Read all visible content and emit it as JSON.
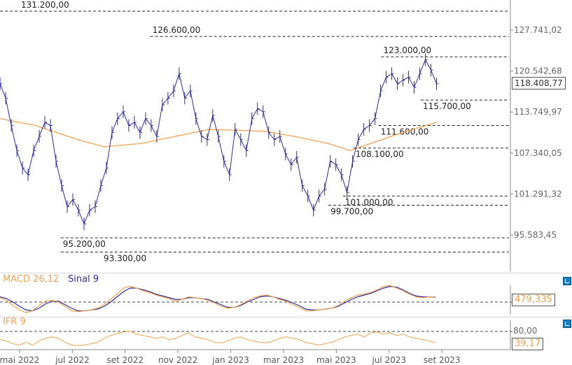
{
  "chart_data": {
    "type": "line",
    "price_scale": "log",
    "y_ticks": [
      "127.741,02",
      "120.542,68",
      "113.749,97",
      "107.340,05",
      "101.291,32",
      "95.583,45"
    ],
    "y_tick_values": [
      127741.02,
      120542.68,
      113749.97,
      107340.05,
      101291.32,
      95583.45
    ],
    "x_ticks": [
      "mai 2022",
      "jul 2022",
      "set 2022",
      "nov 2022",
      "jan 2023",
      "mar 2023",
      "mai 2023",
      "jul 2023",
      "set 2023"
    ],
    "x_tick_months": [
      0,
      2,
      4,
      6,
      8,
      10,
      12,
      14,
      16
    ],
    "series_start_month": -0.74,
    "series_step_month": 0.212,
    "price": [
      118400,
      116000,
      111600,
      107700,
      105100,
      104100,
      107700,
      109900,
      112100,
      111600,
      106100,
      102500,
      99500,
      100500,
      99000,
      97100,
      99000,
      99500,
      102500,
      105100,
      110500,
      112700,
      113800,
      111600,
      112100,
      110500,
      112700,
      111600,
      109900,
      114900,
      116000,
      117200,
      120100,
      116000,
      117200,
      112700,
      109900,
      109400,
      113200,
      109900,
      106100,
      104100,
      111000,
      109400,
      107700,
      112700,
      114300,
      113800,
      110500,
      109400,
      109900,
      107200,
      105600,
      106700,
      102500,
      101000,
      99000,
      101000,
      102000,
      106100,
      105600,
      104100,
      101500,
      106100,
      109400,
      111000,
      111600,
      112700,
      117200,
      119500,
      120100,
      118400,
      119000,
      119500,
      117800,
      120100,
      122500,
      120700,
      118400
    ],
    "last_price": "118.408,77",
    "ma": [
      {
        "m": -0.74,
        "v": 112700
      },
      {
        "m": 0.6,
        "v": 111600
      },
      {
        "m": 2.2,
        "v": 109400
      },
      {
        "m": 3.2,
        "v": 108300
      },
      {
        "m": 4.6,
        "v": 108800
      },
      {
        "m": 5.9,
        "v": 109900
      },
      {
        "m": 7.2,
        "v": 111000
      },
      {
        "m": 9.3,
        "v": 110700
      },
      {
        "m": 10.4,
        "v": 109900
      },
      {
        "m": 11.7,
        "v": 108800
      },
      {
        "m": 12.5,
        "v": 107700
      },
      {
        "m": 13.3,
        "v": 108800
      },
      {
        "m": 14.5,
        "v": 110500
      },
      {
        "m": 15.8,
        "v": 112100
      }
    ],
    "levels": [
      {
        "value": 131200,
        "label": "131.200,00",
        "from_month": -0.74,
        "label_pos": "above"
      },
      {
        "value": 126600,
        "label": "126.600,00",
        "from_month": 4.95,
        "label_pos": "above"
      },
      {
        "value": 123000,
        "label": "123.000,00",
        "from_month": 13.7,
        "label_pos": "above"
      },
      {
        "value": 115700,
        "label": "115.700,00",
        "from_month": 15.2,
        "label_pos": "below"
      },
      {
        "value": 111600,
        "label": "111.600,00",
        "from_month": 13.6,
        "label_pos": "below"
      },
      {
        "value": 108100,
        "label": "108.100,00",
        "from_month": 12.65,
        "label_pos": "below"
      },
      {
        "value": 101000,
        "label": "101.000,00",
        "from_month": 12.25,
        "label_pos": "below"
      },
      {
        "value": 99700,
        "label": "99.700,00",
        "from_month": 11.7,
        "label_pos": "below"
      },
      {
        "value": 95200,
        "label": "95.200,00",
        "from_month": 1.56,
        "label_pos": "inside"
      },
      {
        "value": 93300,
        "label": "93.300,00",
        "from_month": 1.56,
        "label_pos": "below"
      }
    ],
    "zone": {
      "from": 93300,
      "to": 95200,
      "from_month": 1.56,
      "to_month": 15.78,
      "color": "#fbd5c5"
    },
    "macd": {
      "title": "MACD 26,12",
      "signal_title": "Sinal 9",
      "value": "479,335",
      "macd": [
        500,
        200,
        -400,
        -900,
        -1200,
        -1000,
        -400,
        100,
        200,
        0,
        -500,
        -1000,
        -1100,
        -1000,
        -900,
        -700,
        -300,
        300,
        900,
        1600,
        1800,
        1600,
        1300,
        1100,
        800,
        600,
        400,
        100,
        300,
        600,
        500,
        400,
        200,
        -100,
        -500,
        -700,
        -600,
        -300,
        100,
        500,
        700,
        800,
        600,
        300,
        100,
        -300,
        -600,
        -1000,
        -1000,
        -900,
        -800,
        -700,
        -400,
        100,
        500,
        800,
        900,
        1100,
        1400,
        1800,
        1900,
        1600,
        1300,
        900,
        600,
        500,
        600,
        500
      ],
      "signal": [
        600,
        400,
        0,
        -500,
        -900,
        -1000,
        -700,
        -200,
        100,
        100,
        -300,
        -700,
        -1000,
        -1000,
        -900,
        -800,
        -500,
        0,
        600,
        1200,
        1600,
        1600,
        1400,
        1200,
        900,
        700,
        500,
        300,
        300,
        500,
        500,
        400,
        300,
        0,
        -300,
        -600,
        -600,
        -400,
        0,
        300,
        600,
        700,
        600,
        400,
        200,
        -100,
        -400,
        -800,
        -900,
        -900,
        -800,
        -700,
        -500,
        -100,
        300,
        600,
        800,
        1000,
        1300,
        1600,
        1800,
        1700,
        1400,
        1000,
        700,
        600,
        600,
        550
      ],
      "colors": {
        "macd": "#f0a050",
        "signal": "#2b2b9f"
      }
    },
    "ifr": {
      "title": "IFR 9",
      "level": "80,00",
      "level_value": 80,
      "value": "39,17",
      "values": [
        50,
        45,
        35,
        30,
        40,
        30,
        45,
        55,
        60,
        55,
        40,
        30,
        28,
        30,
        35,
        40,
        55,
        65,
        72,
        78,
        80,
        70,
        65,
        60,
        55,
        60,
        50,
        55,
        65,
        75,
        60,
        55,
        50,
        40,
        38,
        45,
        55,
        60,
        50,
        45,
        40,
        38,
        45,
        55,
        60,
        55,
        50,
        40,
        35,
        30,
        35,
        40,
        50,
        60,
        65,
        70,
        60,
        75,
        78,
        70,
        75,
        65,
        70,
        60,
        55,
        50,
        45,
        39
      ]
    }
  }
}
